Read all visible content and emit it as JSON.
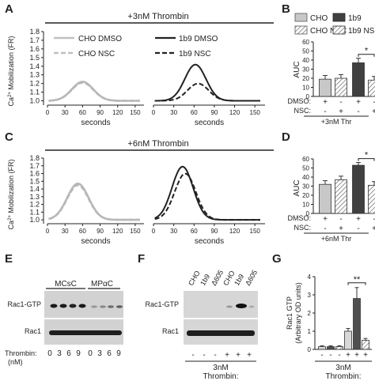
{
  "panels": {
    "A": {
      "letter": "A",
      "banner": "+3nM Thrombin",
      "ylabel_main": "Ca",
      "ylabel_sup": "2+",
      "ylabel_rest": " Mobilization (FR)",
      "xlabel": "seconds",
      "yticks": [
        "1.0",
        "1.1",
        "1.2",
        "1.3",
        "1.4",
        "1.5",
        "1.6",
        "1.7",
        "1.8"
      ],
      "xticks": [
        "0",
        "30",
        "60",
        "90",
        "120",
        "150"
      ],
      "legend": [
        "CHO DMSO",
        "CHO NSC",
        "1b9 DMSO",
        "1b9 NSC"
      ]
    },
    "B": {
      "letter": "B",
      "legend": [
        "CHO",
        "1b9",
        "CHO NSC",
        "1b9 NSC"
      ],
      "ylabel": "AUC",
      "yticks": [
        "0",
        "10",
        "20",
        "30",
        "40",
        "50",
        "60"
      ],
      "row_labels": [
        "DMSO:",
        "NSC:"
      ],
      "dmso_signs": [
        "+",
        "-",
        "+",
        "-"
      ],
      "nsc_signs": [
        "-",
        "+",
        "-",
        "+"
      ],
      "footer": "+3nM Thr",
      "star": "*",
      "colors": {
        "cho": "#c8c8c8",
        "b19": "#404040"
      }
    },
    "C": {
      "letter": "C",
      "banner": "+6nM Thrombin",
      "ylabel_main": "Ca",
      "ylabel_sup": "2+",
      "ylabel_rest": " Mobilization (FR)",
      "xlabel": "seconds",
      "yticks": [
        "1.0",
        "1.1",
        "1.2",
        "1.3",
        "1.4",
        "1.5",
        "1.6",
        "1.7",
        "1.8"
      ],
      "xticks": [
        "0",
        "30",
        "60",
        "90",
        "120",
        "150"
      ]
    },
    "D": {
      "letter": "D",
      "ylabel": "AUC",
      "yticks": [
        "0",
        "10",
        "20",
        "30",
        "40",
        "50",
        "60"
      ],
      "row_labels": [
        "DMSO:",
        "NSC:"
      ],
      "dmso_signs": [
        "+",
        "-",
        "+",
        "-"
      ],
      "nsc_signs": [
        "-",
        "+",
        "-",
        "+"
      ],
      "footer": "+6nM Thr",
      "star": "*"
    },
    "E": {
      "letter": "E",
      "group1": "MCsC",
      "group2": "MPαC",
      "row1": "Rac1-GTP",
      "row2": "Rac1",
      "thrombin_label": "Thrombin:",
      "nm_label": "(nM)",
      "doses": [
        "0",
        "3",
        "6",
        "9",
        "0",
        "3",
        "6",
        "9"
      ]
    },
    "F": {
      "letter": "F",
      "lanes": [
        "CHO",
        "1b9",
        "Δ605",
        "CHO",
        "1b9",
        "Δ605"
      ],
      "row1": "Rac1-GTP",
      "row2": "Rac1",
      "signs": [
        "-",
        "-",
        "-",
        "+",
        "+",
        "+"
      ],
      "footer1": "3nM",
      "footer2": "Thrombin:"
    },
    "G": {
      "letter": "G",
      "ylabel1": "Rac1 GTP",
      "ylabel2": "(Arbitrary OD units)",
      "yticks": [
        "0",
        "1",
        "2",
        "3",
        "4"
      ],
      "signs": [
        "-",
        "-",
        "-",
        "+",
        "+",
        "+"
      ],
      "footer1": "3nM",
      "footer2": "Thrombin:",
      "star": "**"
    }
  },
  "chart_data": [
    {
      "panel": "A",
      "type": "line",
      "title": "+3nM Thrombin",
      "xlabel": "seconds",
      "ylabel": "Ca2+ Mobilization (FR)",
      "xlim": [
        0,
        165
      ],
      "ylim": [
        0.95,
        1.8
      ],
      "series": [
        {
          "name": "CHO DMSO",
          "group": "CHO",
          "peak": 1.22,
          "peak_x": 60,
          "base": 1.0
        },
        {
          "name": "CHO NSC",
          "group": "CHO",
          "peak": 1.21,
          "peak_x": 60,
          "base": 1.0
        },
        {
          "name": "1b9 DMSO",
          "group": "1b9",
          "peak": 1.42,
          "peak_x": 62,
          "base": 1.0
        },
        {
          "name": "1b9 NSC",
          "group": "1b9",
          "peak": 1.2,
          "peak_x": 66,
          "base": 1.0
        }
      ]
    },
    {
      "panel": "B",
      "type": "bar",
      "ylabel": "AUC",
      "ylim": [
        0,
        60
      ],
      "categories": [
        "CHO",
        "CHO NSC",
        "1b9",
        "1b9 NSC"
      ],
      "values": [
        19,
        20,
        37,
        18
      ],
      "errors": [
        4,
        4,
        5,
        4
      ]
    },
    {
      "panel": "C",
      "type": "line",
      "title": "+6nM Thrombin",
      "xlabel": "seconds",
      "ylabel": "Ca2+ Mobilization (FR)",
      "xlim": [
        0,
        165
      ],
      "ylim": [
        0.95,
        1.8
      ],
      "series": [
        {
          "name": "CHO DMSO",
          "group": "CHO",
          "peak": 1.47,
          "peak_x": 52,
          "base": 1.0
        },
        {
          "name": "CHO NSC",
          "group": "CHO",
          "peak": 1.45,
          "peak_x": 52,
          "base": 1.0
        },
        {
          "name": "1b9 DMSO",
          "group": "1b9",
          "peak": 1.69,
          "peak_x": 43,
          "base": 1.0
        },
        {
          "name": "1b9 NSC",
          "group": "1b9",
          "peak": 1.6,
          "peak_x": 47,
          "base": 1.0
        }
      ]
    },
    {
      "panel": "D",
      "type": "bar",
      "ylabel": "AUC",
      "ylim": [
        0,
        60
      ],
      "categories": [
        "CHO",
        "CHO NSC",
        "1b9",
        "1b9 NSC"
      ],
      "values": [
        32,
        37,
        53,
        31
      ],
      "errors": [
        4,
        4,
        3,
        4
      ]
    },
    {
      "panel": "G",
      "type": "bar",
      "ylabel": "Rac1 GTP (Arbitrary OD units)",
      "ylim": [
        0,
        4
      ],
      "categories": [
        "CHO",
        "1b9",
        "Δ605",
        "CHO +",
        "1b9 +",
        "Δ605 +"
      ],
      "values": [
        0.15,
        0.15,
        0.15,
        1.0,
        2.8,
        0.5
      ],
      "errors": [
        0.05,
        0.05,
        0.05,
        0.15,
        0.6,
        0.1
      ]
    }
  ]
}
